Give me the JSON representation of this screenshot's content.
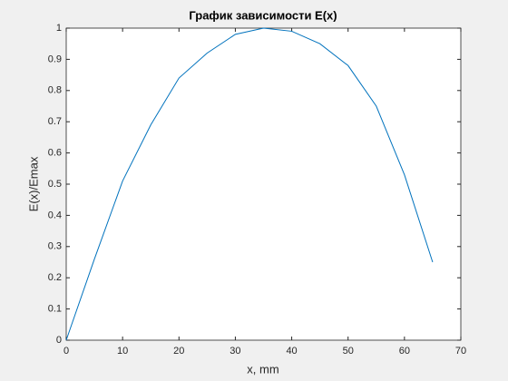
{
  "chart_data": {
    "type": "line",
    "title": "График зависимости E(x)",
    "x_label": "x, mm",
    "y_label": "E(x)/Emax",
    "x": [
      0,
      5,
      10,
      15,
      20,
      25,
      30,
      35,
      40,
      45,
      50,
      55,
      60,
      65
    ],
    "series": [
      {
        "color": "#0072bd",
        "values": [
          0,
          0.26,
          0.51,
          0.69,
          0.84,
          0.92,
          0.98,
          1.0,
          0.99,
          0.95,
          0.88,
          0.75,
          0.53,
          0.25
        ]
      }
    ],
    "xlim": [
      0,
      70
    ],
    "xticks": [
      0,
      10,
      20,
      30,
      40,
      50,
      60,
      70
    ],
    "ylim": [
      0,
      1
    ],
    "yticks": [
      0,
      0.1,
      0.2,
      0.3,
      0.4,
      0.5,
      0.6,
      0.7,
      0.8,
      0.9,
      1
    ]
  }
}
